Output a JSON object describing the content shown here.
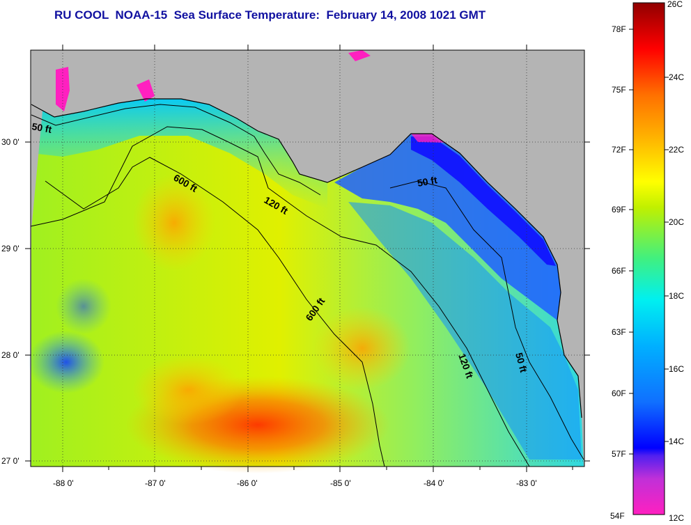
{
  "title": "RU COOL  NOAA-15  Sea Surface Temperature:  February 14, 2008 1021 GMT",
  "map": {
    "x_axis_labels": [
      "-88 0'",
      "-87 0'",
      "-86 0'",
      "-85 0'",
      "-84 0'",
      "-83 0'"
    ],
    "y_axis_labels": [
      "30 0'",
      "29 0'",
      "28 0'",
      "27 0'"
    ],
    "land_color": "#b4b4b4",
    "contour_labels": [
      "50 ft",
      "600 ft",
      "120 ft",
      "50 ft",
      "600 ft",
      "120 ft",
      "50 ft"
    ]
  },
  "colorbar": {
    "fahrenheit_labels": [
      "78F",
      "75F",
      "72F",
      "69F",
      "66F",
      "63F",
      "60F",
      "57F",
      "54F"
    ],
    "celsius_labels": [
      "26C",
      "24C",
      "22C",
      "20C",
      "18C",
      "16C",
      "14C",
      "12C"
    ],
    "colors": [
      "#ff20c0",
      "#9030e0",
      "#1010ff",
      "#1090ff",
      "#00e8ff",
      "#30f090",
      "#c0f000",
      "#ffff00",
      "#ffb000",
      "#ff6000",
      "#ff0000",
      "#a00000"
    ]
  }
}
